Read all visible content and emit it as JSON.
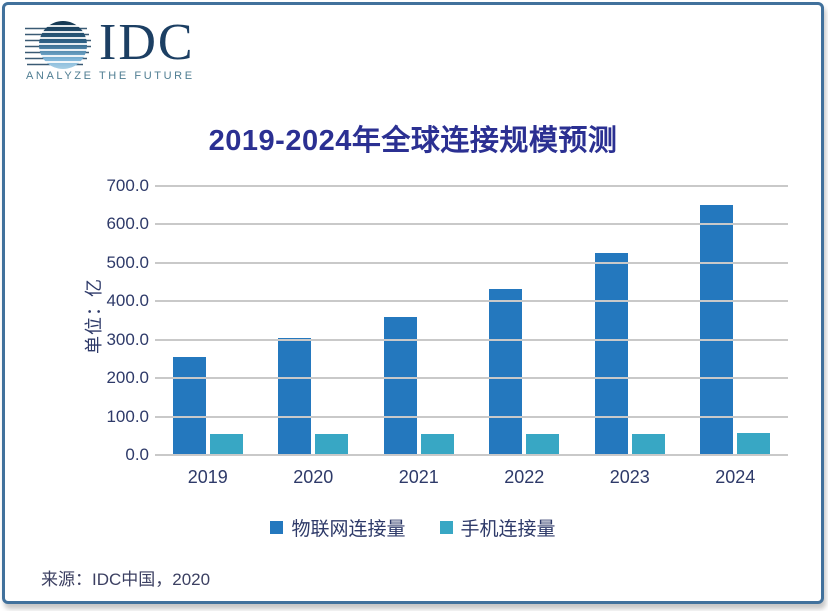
{
  "frame": {
    "border_color": "#41719C",
    "background": "#ffffff"
  },
  "logo": {
    "name": "IDC",
    "tagline": "ANALYZE THE FUTURE",
    "navy": "#1c3f63",
    "tagline_color": "#4f7d92",
    "globe_top_color": "#14364f",
    "globe_bottom_color": "#a9d0e5"
  },
  "title": {
    "text": "2019-2024年全球连接规模预测",
    "color": "#2b3092"
  },
  "source": {
    "text": "来源：IDC中国，2020",
    "color": "#3c4062"
  },
  "chart_data": {
    "type": "bar",
    "title": "2019-2024年全球连接规模预测",
    "categories": [
      "2019",
      "2020",
      "2021",
      "2022",
      "2023",
      "2024"
    ],
    "series": [
      {
        "name": "物联网连接量",
        "color": "#2478BE",
        "values": [
          255,
          305,
          360,
          432,
          525,
          650
        ]
      },
      {
        "name": "手机连接量",
        "color": "#38A7C4",
        "values": [
          55,
          55,
          55,
          56,
          56,
          57
        ]
      }
    ],
    "xlabel": "",
    "ylabel": "单位：亿",
    "ylim": [
      0,
      700
    ],
    "ytick_step": 100,
    "ytick_decimals": 1,
    "grid": true,
    "gridline_color": "#c9c9c9",
    "axis_text_color": "#2e3a69",
    "legend_position": "bottom",
    "legend_text_color": "#2e3a69"
  }
}
